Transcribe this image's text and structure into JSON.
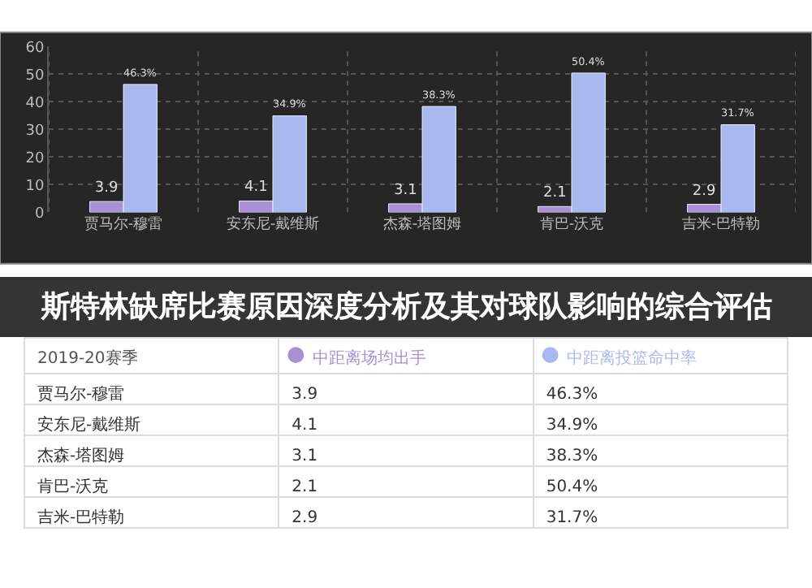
{
  "chart_data": {
    "type": "bar",
    "title": "斯特林缺席比赛原因深度分析及其对球队影响的综合评估",
    "legend_title": "2019-20赛季",
    "categories": [
      "贾马尔-穆雷",
      "安东尼-戴维斯",
      "杰森-塔图姆",
      "肯巴-沃克",
      "吉米-巴特勒"
    ],
    "series": [
      {
        "name": "中距离场均出手",
        "color": "#a98fd6",
        "values": [
          3.9,
          4.1,
          3.1,
          2.1,
          2.9
        ],
        "value_labels": [
          "3.9",
          "4.1",
          "3.1",
          "2.1",
          "2.9"
        ]
      },
      {
        "name": "中距离投篮命中率",
        "color": "#aab8f0",
        "values": [
          46.3,
          34.9,
          38.3,
          50.4,
          31.7
        ],
        "value_labels": [
          "46.3%",
          "34.9%",
          "38.3%",
          "50.4%",
          "31.7%"
        ]
      }
    ],
    "ylim": [
      0,
      60
    ],
    "yticks": [
      0,
      10,
      20,
      30,
      40,
      50,
      60
    ],
    "grid": true,
    "legend": "bottom"
  }
}
